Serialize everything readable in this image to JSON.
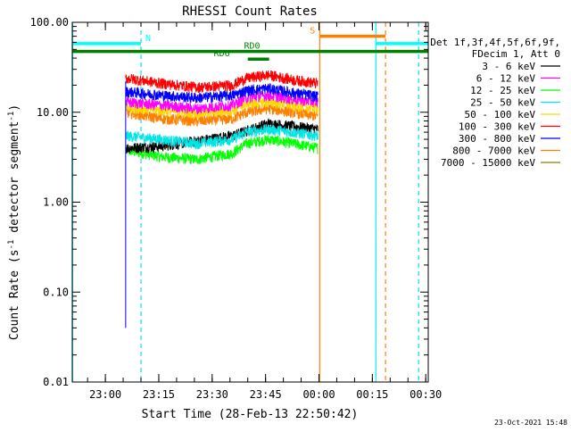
{
  "chart_data": {
    "type": "line",
    "title": "RHESSI Count Rates",
    "xlabel": "Start Time (28-Feb-13 22:50:42)",
    "ylabel_parts": [
      "Count Rate (s",
      "-1",
      " detector segment",
      "-1",
      ")"
    ],
    "yscale": "log",
    "ylim": [
      0.01,
      100
    ],
    "xlim_minutes": [
      0,
      100
    ],
    "xtick_labels": [
      "23:00",
      "23:15",
      "23:30",
      "23:45",
      "00:00",
      "00:15",
      "00:30"
    ],
    "xtick_minutes": [
      9.3,
      24.3,
      39.3,
      54.3,
      69.3,
      84.3,
      99.3
    ],
    "ytick_labels": [
      "0.01",
      "0.10",
      "1.00",
      "10.00",
      "100.00"
    ],
    "ytick_values": [
      0.01,
      0.1,
      1,
      10,
      100
    ],
    "legend_header": [
      "Det 1f,3f,4f,5f,6f,9f,",
      "FDecim 1, Att 0"
    ],
    "legend_position": "right",
    "series": [
      {
        "name": "3 - 6 keV",
        "color": "#000000",
        "x": [
          15,
          25,
          35,
          45,
          49,
          55,
          62,
          69
        ],
        "y": [
          4.0,
          4.2,
          4.8,
          5.5,
          6.2,
          7.5,
          7.0,
          6.5
        ]
      },
      {
        "name": "6 - 12 keV",
        "color": "#ff00ff",
        "x": [
          15,
          25,
          35,
          45,
          49,
          55,
          62,
          69
        ],
        "y": [
          13.0,
          12.0,
          11.0,
          12.0,
          14.5,
          15.5,
          14.0,
          13.0
        ]
      },
      {
        "name": "12 - 25 keV",
        "color": "#00ff00",
        "x": [
          15,
          25,
          35,
          45,
          49,
          55,
          62,
          69
        ],
        "y": [
          3.8,
          3.2,
          3.0,
          3.5,
          4.5,
          5.0,
          4.5,
          4.0
        ]
      },
      {
        "name": "25 - 50 keV",
        "color": "#00e5e5",
        "x": [
          15,
          25,
          35,
          45,
          49,
          55,
          62,
          69
        ],
        "y": [
          5.5,
          5.0,
          4.5,
          5.0,
          6.0,
          6.5,
          6.0,
          5.5
        ]
      },
      {
        "name": "50 - 100 keV",
        "color": "#ffd700",
        "x": [
          15,
          25,
          35,
          45,
          49,
          55,
          62,
          69
        ],
        "y": [
          11.5,
          10.5,
          9.8,
          10.5,
          12.5,
          13.0,
          12.0,
          11.0
        ]
      },
      {
        "name": "100 - 300 keV",
        "color": "#ff0000",
        "x": [
          15,
          25,
          35,
          45,
          49,
          55,
          62,
          69
        ],
        "y": [
          24.0,
          21.0,
          19.0,
          20.0,
          24.0,
          26.0,
          23.0,
          21.0
        ]
      },
      {
        "name": "300 - 800 keV",
        "color": "#0000ff",
        "x": [
          15,
          25,
          35,
          45,
          49,
          55,
          62,
          69
        ],
        "y": [
          17.0,
          15.5,
          14.5,
          15.5,
          17.5,
          18.5,
          16.5,
          15.0
        ]
      },
      {
        "name": "800 - 7000 keV",
        "color": "#ff8000",
        "x": [
          15,
          25,
          35,
          45,
          49,
          55,
          62,
          69
        ],
        "y": [
          10.0,
          8.5,
          8.0,
          8.5,
          10.0,
          11.0,
          10.0,
          9.0
        ]
      },
      {
        "name": "7000 - 15000 keV",
        "color": "#808000",
        "x": [],
        "y": []
      }
    ],
    "initial_spike": {
      "color": "#0000ff",
      "x": 15,
      "y": [
        0.04,
        22
      ]
    },
    "flag_bars": [
      {
        "label": "N",
        "color": "#00ffff",
        "x": [
          0,
          19.3
        ],
        "y": 58,
        "label_x": 21.3
      },
      {
        "label": "",
        "color": "#00ffff",
        "x": [
          85.3,
          100
        ],
        "y": 58,
        "label_x": null
      },
      {
        "label": "S",
        "color": "#ff8000",
        "x": [
          69.5,
          88.0
        ],
        "y": 70,
        "label_x": 67.5
      },
      {
        "label": "RD0",
        "color": "#008000",
        "x": [
          0,
          100
        ],
        "y": 47.5,
        "label_x": 50.5
      },
      {
        "label": "RD6",
        "color": "#008000",
        "x": [
          49.3,
          55.3
        ],
        "y": 39,
        "label_x": 42.0
      }
    ],
    "vlines": [
      {
        "x": 19.3,
        "color": "#00e5e5",
        "dash": true
      },
      {
        "x": 69.5,
        "color": "#ff8000",
        "dash": false
      },
      {
        "x": 85.3,
        "color": "#00ffff",
        "dash": false
      },
      {
        "x": 88.0,
        "color": "#ff8000",
        "dash": true
      },
      {
        "x": 97.3,
        "color": "#00e5e5",
        "dash": true
      },
      {
        "x": 0.1,
        "color": "#00ffff",
        "dash": false
      }
    ],
    "timestamp": "23-Oct-2021 15:48",
    "grid": false
  }
}
